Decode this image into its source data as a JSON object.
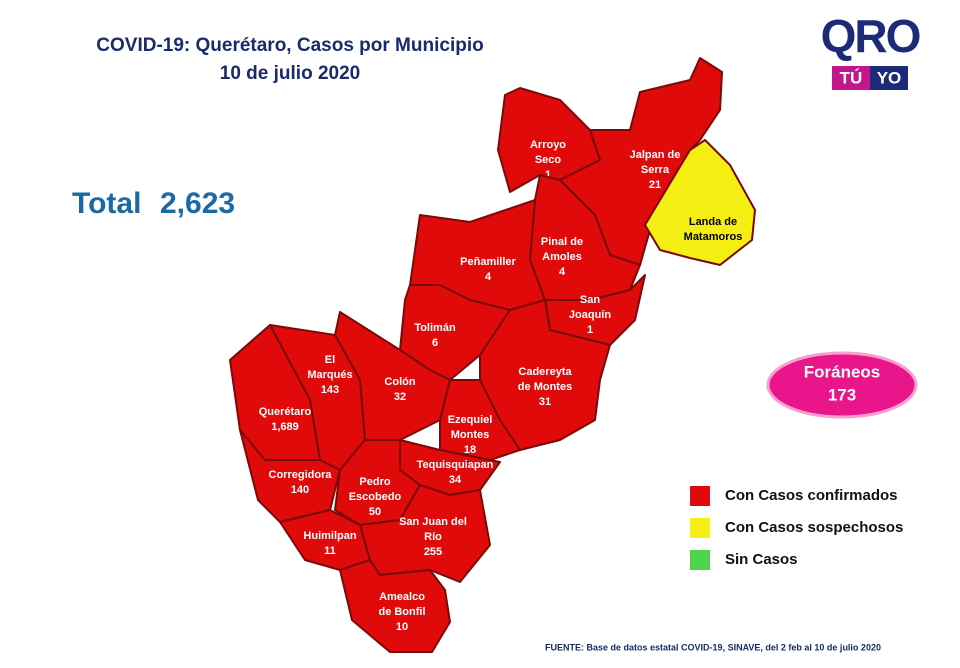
{
  "header": {
    "title": "COVID-19: Querétaro, Casos por Municipio",
    "date": "10 de julio 2020"
  },
  "logo": {
    "main": "QRO",
    "left": "TÚ",
    "right": "YO"
  },
  "total": {
    "label": "Total",
    "value": "2,623"
  },
  "municipalities": [
    {
      "name": [
        "Arroyo",
        "Seco"
      ],
      "cases": "1",
      "color": "#e10a0a"
    },
    {
      "name": [
        "Jalpan de",
        "Serra"
      ],
      "cases": "21",
      "color": "#e10a0a"
    },
    {
      "name": [
        "Landa de",
        "Matamoros"
      ],
      "cases": null,
      "color": "#f5ee12"
    },
    {
      "name": [
        "Pinal de",
        "Amoles"
      ],
      "cases": "4",
      "color": "#e10a0a"
    },
    {
      "name": [
        "Peñamiller"
      ],
      "cases": "4",
      "color": "#e10a0a"
    },
    {
      "name": [
        "San",
        "Joaquín"
      ],
      "cases": "1",
      "color": "#e10a0a"
    },
    {
      "name": [
        "Tolimán"
      ],
      "cases": "6",
      "color": "#e10a0a"
    },
    {
      "name": [
        "Cadereyta",
        "de Montes"
      ],
      "cases": "31",
      "color": "#e10a0a"
    },
    {
      "name": [
        "Colón"
      ],
      "cases": "32",
      "color": "#e10a0a"
    },
    {
      "name": [
        "El",
        "Marqués"
      ],
      "cases": "143",
      "color": "#e10a0a"
    },
    {
      "name": [
        "Querétaro"
      ],
      "cases": "1,689",
      "color": "#e10a0a"
    },
    {
      "name": [
        "Ezequiel",
        "Montes"
      ],
      "cases": "18",
      "color": "#e10a0a"
    },
    {
      "name": [
        "Tequisquiapan"
      ],
      "cases": "34",
      "color": "#e10a0a"
    },
    {
      "name": [
        "Corregidora"
      ],
      "cases": "140",
      "color": "#e10a0a"
    },
    {
      "name": [
        "Pedro",
        "Escobedo"
      ],
      "cases": "50",
      "color": "#e10a0a"
    },
    {
      "name": [
        "Huimilpan"
      ],
      "cases": "11",
      "color": "#e10a0a"
    },
    {
      "name": [
        "San Juan del",
        "Río"
      ],
      "cases": "255",
      "color": "#e10a0a"
    },
    {
      "name": [
        "Amealco",
        "de Bonfil"
      ],
      "cases": "10",
      "color": "#e10a0a"
    }
  ],
  "foraneos": {
    "label": "Foráneos",
    "value": "173"
  },
  "legend": [
    {
      "label": "Con Casos confirmados",
      "color": "#e10a0a"
    },
    {
      "label": "Con Casos sospechosos",
      "color": "#f5ee12"
    },
    {
      "label": "Sin Casos",
      "color": "#4cd44c"
    }
  ],
  "source": "FUENTE: Base de datos estatal COVID-19, SINAVE, del 2 feb al 10 de julio 2020"
}
